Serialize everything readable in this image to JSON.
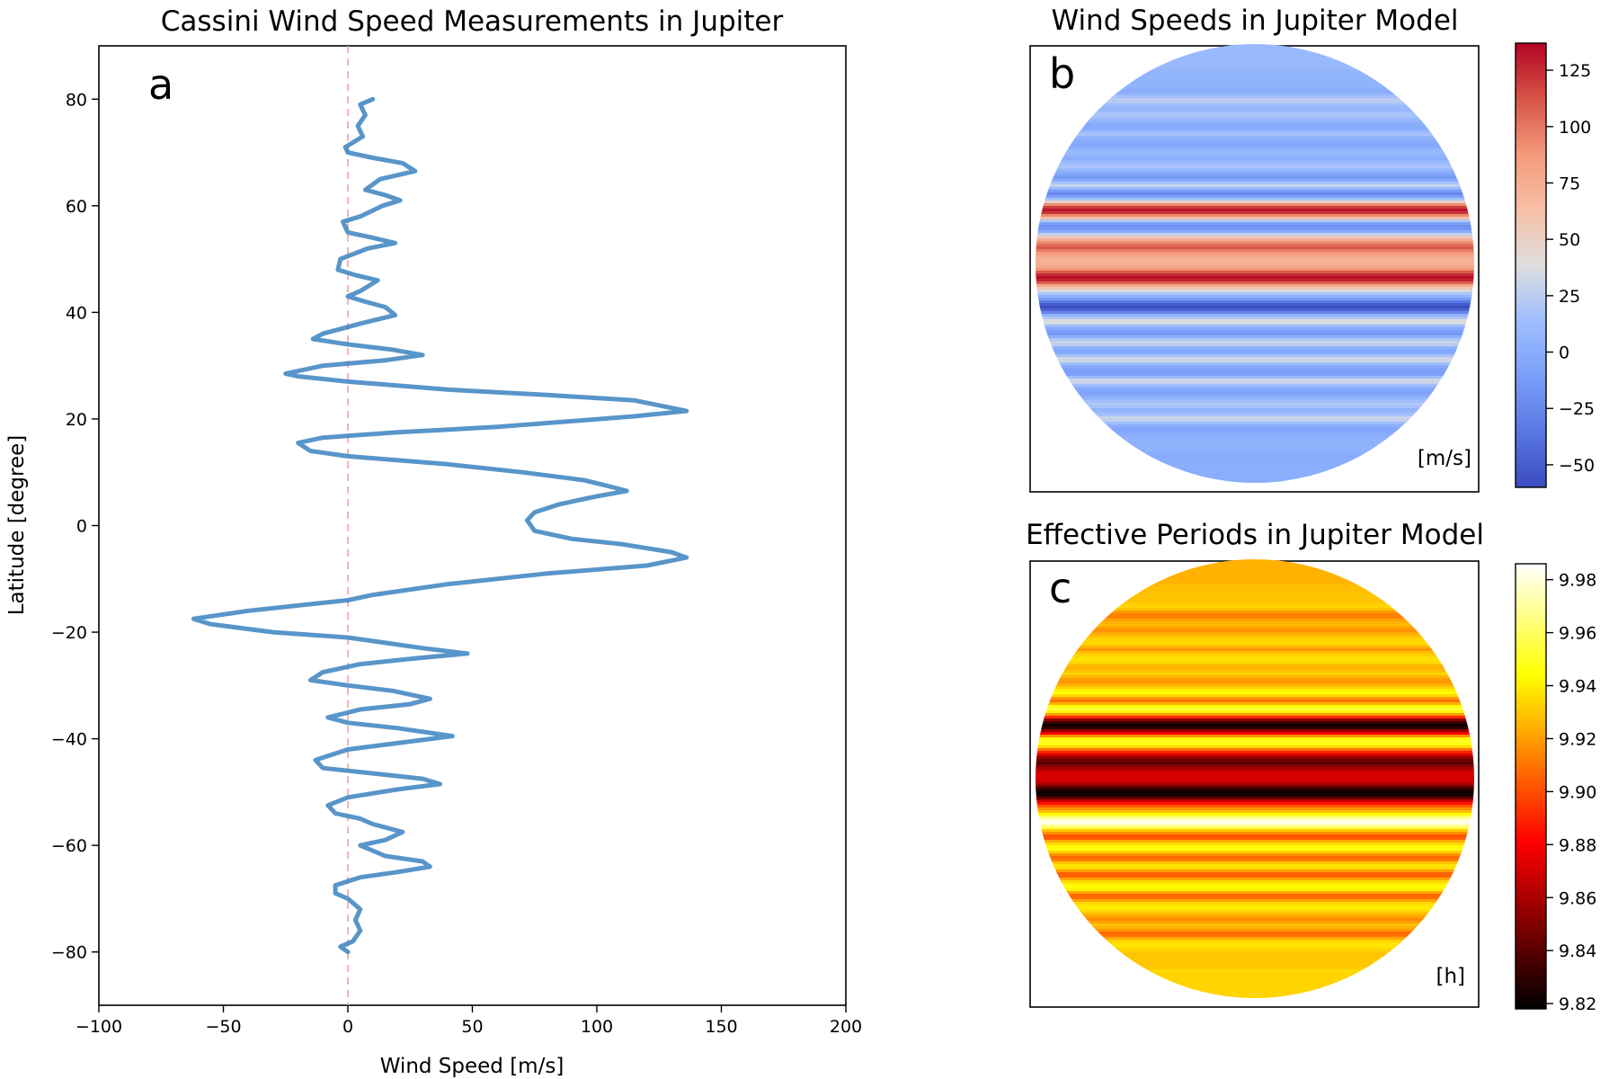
{
  "chart_data": [
    {
      "panel": "a",
      "type": "line",
      "title": "Cassini Wind Speed Measurements in Jupiter",
      "panel_label": "a",
      "xlabel": "Wind Speed [m/s]",
      "ylabel": "Latitude [degree]",
      "xlim": [
        -100,
        200
      ],
      "ylim": [
        -90,
        90
      ],
      "xticks": [
        -100,
        -50,
        0,
        50,
        100,
        150,
        200
      ],
      "yticks": [
        -80,
        -60,
        -40,
        -20,
        0,
        20,
        40,
        60,
        80
      ],
      "grid": false,
      "line_color": "#3b82c0",
      "zero_line_color": "#f4a0a0",
      "series": [
        {
          "values": [
            [
              10,
              80
            ],
            [
              5,
              79
            ],
            [
              7,
              77
            ],
            [
              4,
              75
            ],
            [
              6,
              73
            ],
            [
              -1,
              71
            ],
            [
              0,
              70
            ],
            [
              10,
              69
            ],
            [
              22,
              68
            ],
            [
              27,
              66.5
            ],
            [
              13,
              65
            ],
            [
              7,
              63
            ],
            [
              15,
              62
            ],
            [
              21,
              61
            ],
            [
              14,
              60
            ],
            [
              5,
              58
            ],
            [
              -2,
              57
            ],
            [
              0,
              55
            ],
            [
              10,
              54
            ],
            [
              19,
              53
            ],
            [
              8,
              52
            ],
            [
              -3,
              50
            ],
            [
              -4,
              48
            ],
            [
              3,
              47
            ],
            [
              12,
              46
            ],
            [
              5,
              44
            ],
            [
              0,
              43
            ],
            [
              7,
              42
            ],
            [
              15,
              41
            ],
            [
              19,
              39.5
            ],
            [
              6,
              38
            ],
            [
              -10,
              36
            ],
            [
              -14,
              35
            ],
            [
              0,
              34
            ],
            [
              18,
              33
            ],
            [
              30,
              32
            ],
            [
              15,
              31
            ],
            [
              -10,
              30
            ],
            [
              -25,
              28.5
            ],
            [
              -20,
              28
            ],
            [
              0,
              27
            ],
            [
              40,
              25.5
            ],
            [
              80,
              24.5
            ],
            [
              115,
              23.5
            ],
            [
              136,
              21.5
            ],
            [
              115,
              20.5
            ],
            [
              60,
              18.5
            ],
            [
              20,
              17.5
            ],
            [
              -10,
              16.5
            ],
            [
              -20,
              15.5
            ],
            [
              -15,
              14
            ],
            [
              0,
              13
            ],
            [
              40,
              11.5
            ],
            [
              70,
              10
            ],
            [
              95,
              8.5
            ],
            [
              108,
              7
            ],
            [
              112,
              6.5
            ],
            [
              100,
              5.5
            ],
            [
              85,
              4
            ],
            [
              75,
              2.5
            ],
            [
              72,
              1
            ],
            [
              75,
              -1
            ],
            [
              90,
              -2.5
            ],
            [
              110,
              -3.5
            ],
            [
              130,
              -5
            ],
            [
              136,
              -6
            ],
            [
              120,
              -7.5
            ],
            [
              80,
              -9
            ],
            [
              40,
              -11
            ],
            [
              10,
              -13
            ],
            [
              0,
              -14
            ],
            [
              -20,
              -15
            ],
            [
              -40,
              -16
            ],
            [
              -62,
              -17.5
            ],
            [
              -55,
              -18.5
            ],
            [
              -30,
              -20
            ],
            [
              0,
              -21
            ],
            [
              15,
              -22
            ],
            [
              30,
              -23
            ],
            [
              48,
              -24
            ],
            [
              25,
              -25
            ],
            [
              5,
              -26
            ],
            [
              -10,
              -27.5
            ],
            [
              -15,
              -29
            ],
            [
              0,
              -30
            ],
            [
              18,
              -31
            ],
            [
              33,
              -32.5
            ],
            [
              25,
              -33.5
            ],
            [
              5,
              -34.5
            ],
            [
              -8,
              -36
            ],
            [
              0,
              -37
            ],
            [
              20,
              -38
            ],
            [
              42,
              -39.5
            ],
            [
              25,
              -40.5
            ],
            [
              0,
              -42
            ],
            [
              -13,
              -44
            ],
            [
              -10,
              -45.5
            ],
            [
              10,
              -46.5
            ],
            [
              30,
              -47.5
            ],
            [
              37,
              -48.5
            ],
            [
              20,
              -49.5
            ],
            [
              0,
              -51
            ],
            [
              -8,
              -52.5
            ],
            [
              -5,
              -54
            ],
            [
              5,
              -55
            ],
            [
              10,
              -56
            ],
            [
              22,
              -57.5
            ],
            [
              15,
              -59
            ],
            [
              5,
              -60
            ],
            [
              15,
              -62
            ],
            [
              30,
              -63
            ],
            [
              33,
              -64
            ],
            [
              20,
              -65
            ],
            [
              5,
              -66
            ],
            [
              -5,
              -67.5
            ],
            [
              -5,
              -69
            ],
            [
              0,
              -70
            ],
            [
              5,
              -72
            ],
            [
              3,
              -74
            ],
            [
              5,
              -76
            ],
            [
              2,
              -78
            ],
            [
              -3,
              -79
            ],
            [
              0,
              -80
            ]
          ]
        }
      ]
    },
    {
      "panel": "b",
      "type": "heatmap",
      "title": "Wind Speeds in Jupiter Model",
      "panel_label": "b",
      "unit_label": "[m/s]",
      "colormap": "coolwarm",
      "color_range": [
        -60,
        137
      ],
      "colorbar_ticks": [
        -50,
        -25,
        0,
        25,
        50,
        75,
        100,
        125
      ],
      "colors": [
        "#3b4cc0",
        "#dddddd",
        "#b40426"
      ]
    },
    {
      "panel": "c",
      "type": "heatmap",
      "title": "Effective Periods in Jupiter Model",
      "panel_label": "c",
      "unit_label": "[h]",
      "colormap": "hot",
      "color_range": [
        9.818,
        9.986
      ],
      "colorbar_ticks": [
        9.82,
        9.84,
        9.86,
        9.88,
        9.9,
        9.92,
        9.94,
        9.96,
        9.98
      ],
      "colors": [
        "#000000",
        "#ff0000",
        "#ffff00",
        "#ffffff"
      ]
    }
  ]
}
